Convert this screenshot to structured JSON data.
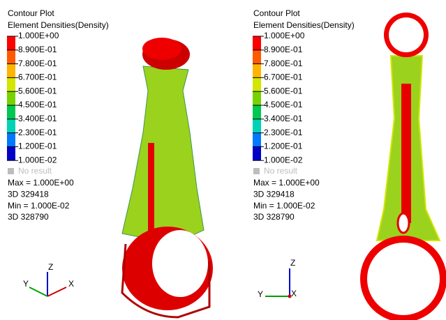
{
  "panels": [
    {
      "title": "Contour Plot",
      "subtitle": "Element Densities(Density)",
      "legend": {
        "labels": [
          "1.000E+00",
          "8.900E-01",
          "7.800E-01",
          "6.700E-01",
          "5.600E-01",
          "4.500E-01",
          "3.400E-01",
          "2.300E-01",
          "1.200E-01",
          "1.000E-02"
        ],
        "colors": [
          "#ff0000",
          "#ff5a00",
          "#ffb400",
          "#d2e600",
          "#78d200",
          "#00c850",
          "#00d2b4",
          "#0078ff",
          "#0000c8"
        ]
      },
      "no_result": "No result",
      "stats": [
        "Max = 1.000E+00",
        "3D 329418",
        "Min = 1.000E-02",
        "3D 328790"
      ],
      "axes": {
        "x": "X",
        "y": "Y",
        "z": "Z"
      }
    },
    {
      "title": "Contour Plot",
      "subtitle": "Element Densities(Density)",
      "legend": {
        "labels": [
          "1.000E+00",
          "8.900E-01",
          "7.800E-01",
          "6.700E-01",
          "5.600E-01",
          "4.500E-01",
          "3.400E-01",
          "2.300E-01",
          "1.200E-01",
          "1.000E-02"
        ],
        "colors": [
          "#ff0000",
          "#ff5a00",
          "#ffb400",
          "#d2e600",
          "#78d200",
          "#00c850",
          "#00d2b4",
          "#0078ff",
          "#0000c8"
        ]
      },
      "no_result": "No result",
      "stats": [
        "Max = 1.000E+00",
        "3D 329418",
        "Min = 1.000E-02",
        "3D 328790"
      ],
      "axes": {
        "x": "X",
        "y": "Y",
        "z": "Z"
      }
    }
  ]
}
